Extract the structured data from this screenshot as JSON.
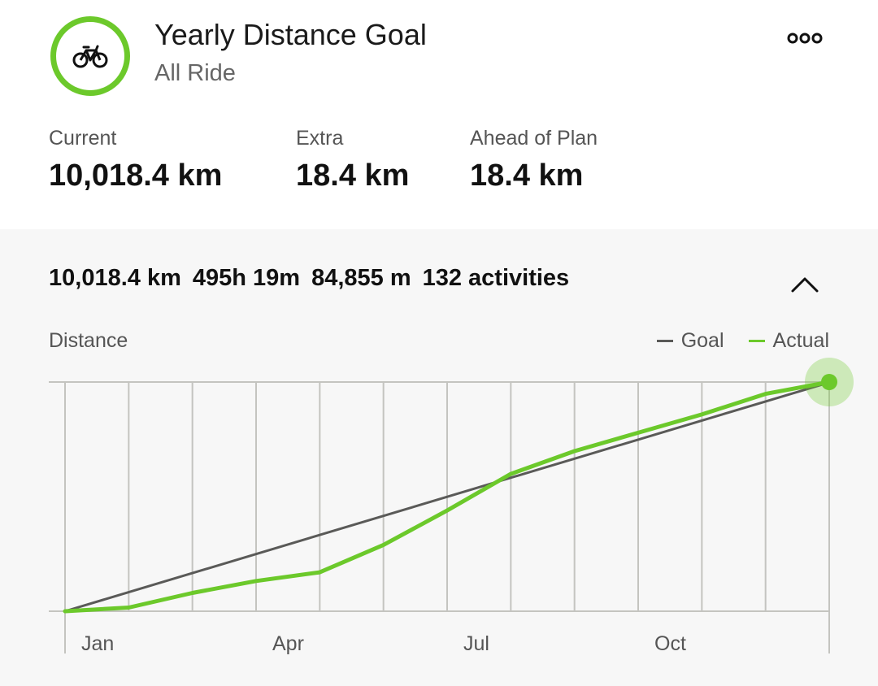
{
  "goal": {
    "title": "Yearly Distance Goal",
    "subtitle": "All Ride",
    "icon": "bike-icon",
    "ring_color": "#6cc92b"
  },
  "stats": [
    {
      "label": "Current",
      "value": "10,018.4 km"
    },
    {
      "label": "Extra",
      "value": "18.4 km"
    },
    {
      "label": "Ahead of Plan",
      "value": "18.4 km"
    }
  ],
  "summary": {
    "distance": "10,018.4 km",
    "time": "495h 19m",
    "elevation": "84,855 m",
    "activities": "132 activities"
  },
  "colors": {
    "goal": "#5a5a58",
    "actual": "#6cc92b",
    "grid": "#c4c4c0"
  },
  "chart_data": {
    "type": "line",
    "title": "",
    "ylabel": "Distance",
    "xlabel": "",
    "x_tick_labels": [
      "Jan",
      "Apr",
      "Jul",
      "Oct"
    ],
    "x_tick_positions": [
      0,
      3,
      6,
      9
    ],
    "x_range": [
      0,
      12
    ],
    "ylim": [
      0,
      10018.4
    ],
    "grid": true,
    "legend": {
      "placement": "top-right",
      "entries": [
        "Goal",
        "Actual"
      ]
    },
    "series": [
      {
        "name": "Goal",
        "x": [
          0,
          12
        ],
        "y": [
          0,
          10000
        ]
      },
      {
        "name": "Actual",
        "x": [
          0,
          1,
          2,
          3,
          4,
          5,
          6,
          7,
          8,
          9,
          10,
          11,
          12
        ],
        "y": [
          0,
          160,
          800,
          1320,
          1700,
          2900,
          4400,
          6000,
          7000,
          7800,
          8600,
          9500,
          10018.4
        ]
      }
    ],
    "highlight": {
      "series": "Actual",
      "x": 12,
      "y": 10018.4
    }
  }
}
